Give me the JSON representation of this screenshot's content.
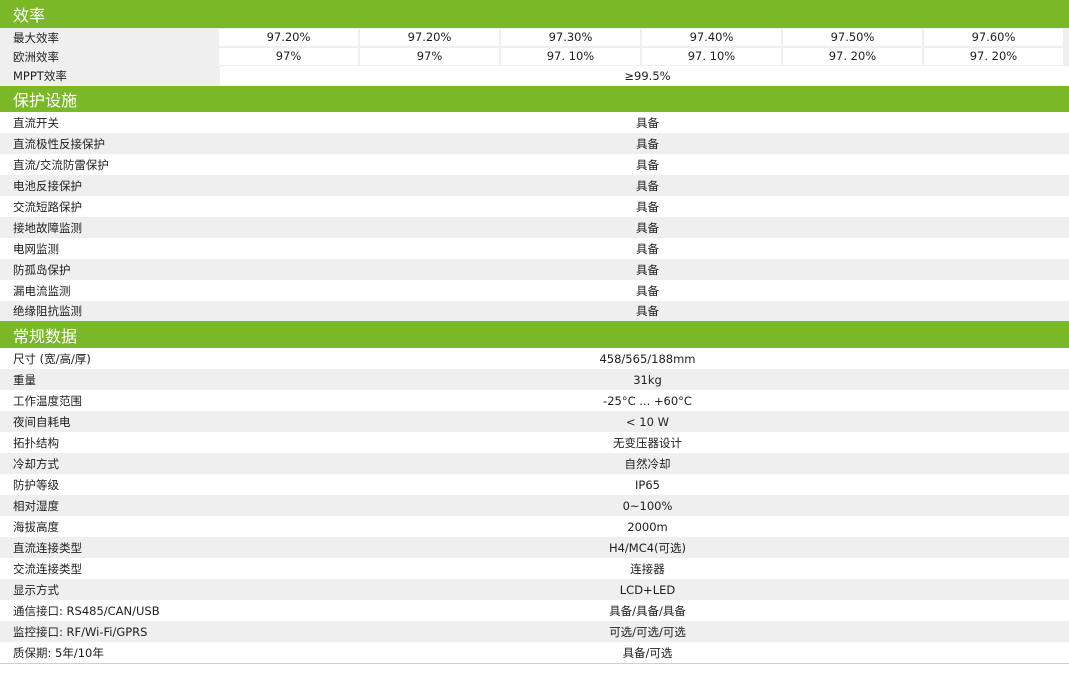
{
  "sections": {
    "efficiency": {
      "title": "效率",
      "max_efficiency": {
        "label": "最大效率",
        "values": [
          "97.20%",
          "97.20%",
          "97.30%",
          "97.40%",
          "97.50%",
          "97.60%"
        ]
      },
      "euro_efficiency": {
        "label": "欧洲效率",
        "values": [
          "97%",
          "97%",
          "97. 10%",
          "97. 10%",
          "97. 20%",
          "97. 20%"
        ]
      },
      "mppt": {
        "label": "MPPT效率",
        "value": "≥99.5%"
      }
    },
    "protection": {
      "title": "保护设施",
      "rows": [
        {
          "label": "直流开关",
          "value": "具备"
        },
        {
          "label": "直流极性反接保护",
          "value": "具备"
        },
        {
          "label": "直流/交流防雷保护",
          "value": "具备"
        },
        {
          "label": "电池反接保护",
          "value": "具备"
        },
        {
          "label": "交流短路保护",
          "value": "具备"
        },
        {
          "label": "接地故障监测",
          "value": "具备"
        },
        {
          "label": "电网监测",
          "value": "具备"
        },
        {
          "label": "防孤岛保护",
          "value": "具备"
        },
        {
          "label": "漏电流监测",
          "value": "具备"
        },
        {
          "label": "绝缘阻抗监测",
          "value": "具备"
        }
      ]
    },
    "general": {
      "title": "常规数据",
      "rows": [
        {
          "label": "尺寸 (宽/高/厚)",
          "value": "458/565/188mm"
        },
        {
          "label": "重量",
          "value": "31kg"
        },
        {
          "label": "工作温度范围",
          "value": "-25°C ... +60°C"
        },
        {
          "label": "夜间自耗电",
          "value": "< 10 W"
        },
        {
          "label": "拓扑结构",
          "value": "无变压器设计"
        },
        {
          "label": "冷却方式",
          "value": "自然冷却"
        },
        {
          "label": "防护等级",
          "value": "IP65"
        },
        {
          "label": "相对湿度",
          "value": "0~100%"
        },
        {
          "label": "海拔高度",
          "value": "2000m"
        },
        {
          "label": "直流连接类型",
          "value": "H4/MC4(可选)"
        },
        {
          "label": "交流连接类型",
          "value": "连接器"
        },
        {
          "label": "显示方式",
          "value": "LCD+LED"
        },
        {
          "label": "通信接口: RS485/CAN/USB",
          "value": "具备/具备/具备"
        },
        {
          "label": "监控接口: RF/Wi-Fi/GPRS",
          "value": "可选/可选/可选"
        },
        {
          "label": "质保期: 5年/10年",
          "value": "具备/可选"
        }
      ]
    }
  },
  "colors": {
    "header_green": "#7ab828",
    "row_alt": "#efefef"
  }
}
